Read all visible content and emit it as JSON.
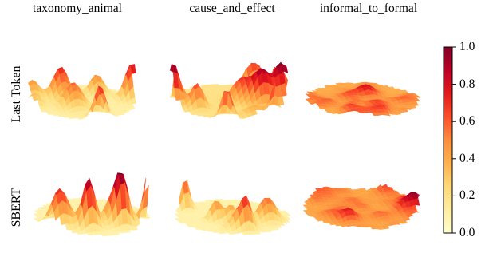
{
  "chart_data": {
    "type": "surface-grid",
    "columns": [
      "taxonomy_animal",
      "cause_and_effect",
      "informal_to_formal"
    ],
    "rows": [
      "Last Token",
      "SBERT"
    ],
    "colorbar": {
      "colormap": "YlOrRd",
      "range": [
        0.0,
        1.0
      ],
      "ticks": [
        "0.0",
        "0.2",
        "0.4",
        "0.6",
        "0.8",
        "1.0"
      ],
      "stops": [
        "#ffffcc",
        "#ffeda0",
        "#fed976",
        "#feb24c",
        "#fd8d3c",
        "#fc4e2a",
        "#e31a1c",
        "#bd0026",
        "#800026"
      ]
    },
    "panels": [
      {
        "row": "Last Token",
        "column": "taxonomy_animal",
        "kind": "sparse-peaks",
        "peak_max": 0.75,
        "base_level": 0.1
      },
      {
        "row": "Last Token",
        "column": "cause_and_effect",
        "kind": "dense-peaks",
        "peak_max": 0.75,
        "base_level": 0.18
      },
      {
        "row": "Last Token",
        "column": "informal_to_formal",
        "kind": "rough-plateau",
        "peak_max": 0.45,
        "base_level": 0.38
      },
      {
        "row": "SBERT",
        "column": "taxonomy_animal",
        "kind": "sparse-peaks",
        "peak_max": 0.9,
        "base_level": 0.08
      },
      {
        "row": "SBERT",
        "column": "cause_and_effect",
        "kind": "sparse-peaks",
        "peak_max": 0.65,
        "base_level": 0.08
      },
      {
        "row": "SBERT",
        "column": "informal_to_formal",
        "kind": "rough-plateau",
        "peak_max": 0.5,
        "base_level": 0.4
      }
    ]
  }
}
